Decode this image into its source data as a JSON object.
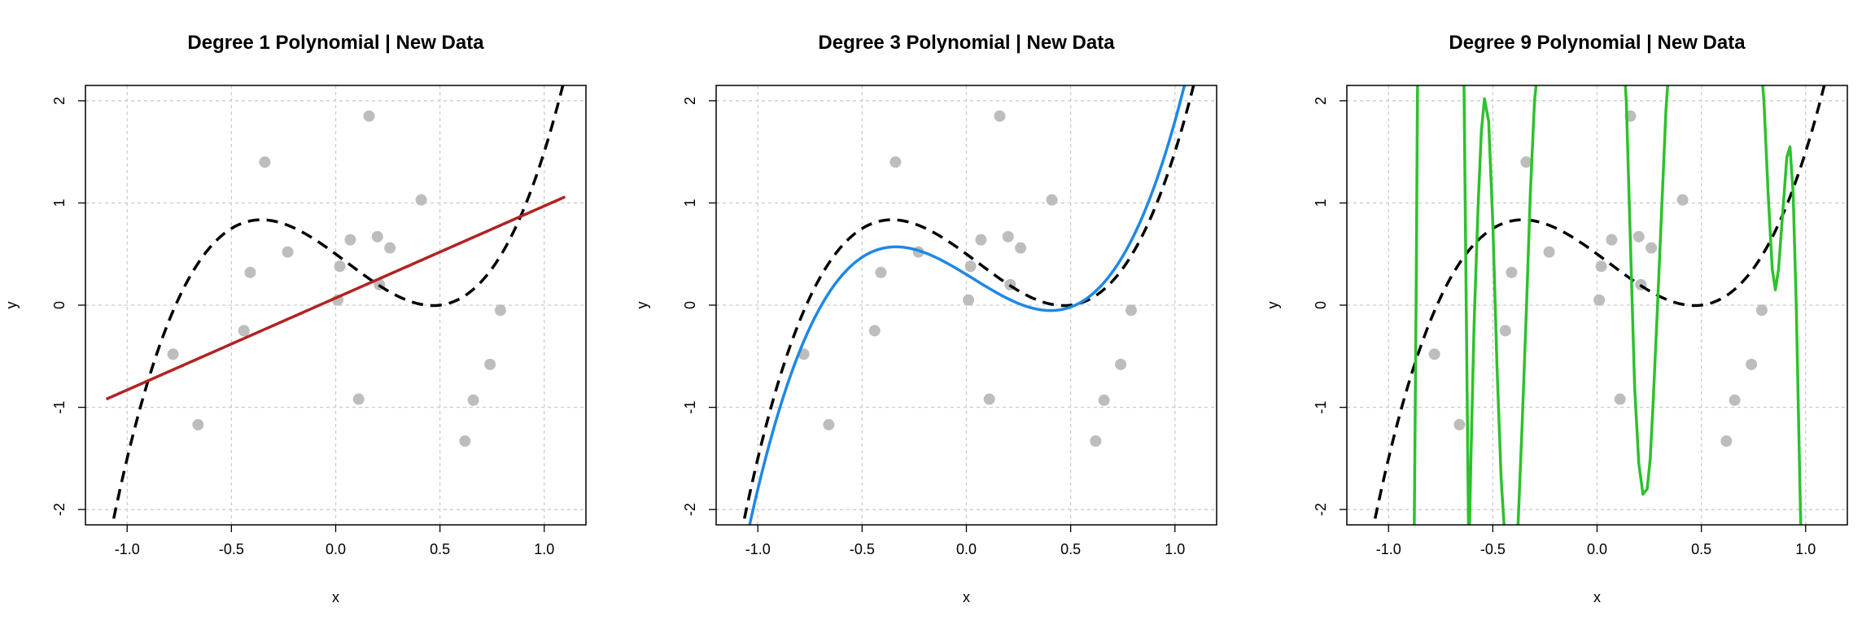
{
  "chart_data": [
    {
      "type": "line",
      "title": "Degree 1 Polynomial | New Data",
      "xlabel": "x",
      "ylabel": "y",
      "xlim": [
        -1.2,
        1.2
      ],
      "ylim": [
        -2.15,
        2.15
      ],
      "xticks": [
        -1.0,
        -0.5,
        0.0,
        0.5,
        1.0
      ],
      "xtick_labels": [
        "-1.0",
        "-0.5",
        "0.0",
        "0.5",
        "1.0"
      ],
      "yticks": [
        -2,
        -1,
        0,
        1,
        2
      ],
      "ytick_labels": [
        "-2",
        "-1",
        "0",
        "1",
        "2"
      ],
      "grid": true,
      "fit_color": "#B22222",
      "fit_coefficients": [
        0.07,
        0.9
      ],
      "fit_domain": [
        -1.1,
        1.1
      ],
      "truth_coefficients": [
        0.5,
        -1.5,
        -0.5,
        3.0
      ],
      "truth_domain": [
        -1.1,
        1.1
      ],
      "points": {
        "x": [
          -0.78,
          -0.66,
          -0.44,
          -0.41,
          -0.34,
          -0.23,
          0.01,
          0.02,
          0.07,
          0.11,
          0.16,
          0.2,
          0.21,
          0.26,
          0.41,
          0.62,
          0.66,
          0.74,
          0.79
        ],
        "y": [
          -0.48,
          -1.17,
          -0.25,
          0.32,
          1.4,
          0.52,
          0.05,
          0.38,
          0.64,
          -0.92,
          1.85,
          0.67,
          0.2,
          0.56,
          1.03,
          -1.33,
          -0.93,
          -0.58,
          -0.05
        ]
      }
    },
    {
      "type": "line",
      "title": "Degree 3 Polynomial | New Data",
      "xlabel": "x",
      "ylabel": "y",
      "xlim": [
        -1.2,
        1.2
      ],
      "ylim": [
        -2.15,
        2.15
      ],
      "xticks": [
        -1.0,
        -0.5,
        0.0,
        0.5,
        1.0
      ],
      "xtick_labels": [
        "-1.0",
        "-0.5",
        "0.0",
        "0.5",
        "1.0"
      ],
      "yticks": [
        -2,
        -1,
        0,
        1,
        2
      ],
      "ytick_labels": [
        "-2",
        "-1",
        "0",
        "1",
        "2"
      ],
      "grid": true,
      "fit_color": "#1E88E5",
      "fit_coefficients": [
        0.3,
        -1.25,
        -0.3,
        3.05
      ],
      "fit_domain": [
        -1.1,
        1.1
      ],
      "truth_coefficients": [
        0.5,
        -1.5,
        -0.5,
        3.0
      ],
      "truth_domain": [
        -1.1,
        1.1
      ],
      "points": {
        "x": [
          -0.78,
          -0.66,
          -0.44,
          -0.41,
          -0.34,
          -0.23,
          0.01,
          0.02,
          0.07,
          0.11,
          0.16,
          0.2,
          0.21,
          0.26,
          0.41,
          0.62,
          0.66,
          0.74,
          0.79
        ],
        "y": [
          -0.48,
          -1.17,
          -0.25,
          0.32,
          1.4,
          0.52,
          0.05,
          0.38,
          0.64,
          -0.92,
          1.85,
          0.67,
          0.2,
          0.56,
          1.03,
          -1.33,
          -0.93,
          -0.58,
          -0.05
        ]
      }
    },
    {
      "type": "line",
      "title": "Degree 9 Polynomial | New Data",
      "xlabel": "x",
      "ylabel": "y",
      "xlim": [
        -1.2,
        1.2
      ],
      "ylim": [
        -2.15,
        2.15
      ],
      "xticks": [
        -1.0,
        -0.5,
        0.0,
        0.5,
        1.0
      ],
      "xtick_labels": [
        "-1.0",
        "-0.5",
        "0.0",
        "0.5",
        "1.0"
      ],
      "yticks": [
        -2,
        -1,
        0,
        1,
        2
      ],
      "ytick_labels": [
        "-2",
        "-1",
        "0",
        "1",
        "2"
      ],
      "grid": true,
      "fit_color": "#2DC12D",
      "fit_points": {
        "x": [
          -0.878,
          -0.868,
          -0.86,
          -0.82,
          -0.75,
          -0.69,
          -0.64,
          -0.615,
          -0.605,
          -0.59,
          -0.57,
          -0.555,
          -0.54,
          -0.52,
          -0.5,
          -0.48,
          -0.46,
          -0.44,
          -0.42,
          -0.4,
          -0.38,
          -0.36,
          -0.34,
          -0.32,
          -0.3,
          -0.28,
          -0.265,
          -0.255,
          -0.24,
          -0.2,
          -0.15,
          -0.1,
          -0.05,
          0.0,
          0.05,
          0.1,
          0.125,
          0.14,
          0.16,
          0.18,
          0.2,
          0.22,
          0.24,
          0.255,
          0.27,
          0.29,
          0.31,
          0.33,
          0.35,
          0.365,
          0.375,
          0.4,
          0.5,
          0.6,
          0.7,
          0.78,
          0.8,
          0.82,
          0.84,
          0.855,
          0.87,
          0.89,
          0.91,
          0.925,
          0.94,
          0.955,
          0.97,
          0.98,
          0.99
        ],
        "y": [
          -2.5,
          0.0,
          2.5,
          2.5,
          2.5,
          2.5,
          2.5,
          -2.5,
          -1.5,
          -0.2,
          1.0,
          1.7,
          2.02,
          1.8,
          0.8,
          -0.6,
          -1.7,
          -2.35,
          -2.5,
          -2.5,
          -2.2,
          -1.2,
          -0.1,
          1.1,
          2.0,
          2.4,
          2.5,
          2.5,
          2.5,
          2.5,
          2.5,
          2.5,
          2.5,
          2.5,
          2.5,
          2.5,
          2.5,
          2.0,
          0.6,
          -0.8,
          -1.55,
          -1.85,
          -1.8,
          -1.5,
          -0.9,
          0.0,
          0.95,
          1.9,
          2.5,
          2.5,
          2.5,
          2.5,
          2.5,
          2.5,
          2.5,
          2.5,
          2.0,
          1.1,
          0.35,
          0.15,
          0.35,
          0.9,
          1.45,
          1.55,
          1.1,
          0.0,
          -1.5,
          -2.5,
          -2.5
        ]
      },
      "truth_coefficients": [
        0.5,
        -1.5,
        -0.5,
        3.0
      ],
      "truth_domain": [
        -1.1,
        1.1
      ],
      "points": {
        "x": [
          -0.78,
          -0.66,
          -0.44,
          -0.41,
          -0.34,
          -0.23,
          0.01,
          0.02,
          0.07,
          0.11,
          0.16,
          0.2,
          0.21,
          0.26,
          0.41,
          0.62,
          0.66,
          0.74,
          0.79
        ],
        "y": [
          -0.48,
          -1.17,
          -0.25,
          0.32,
          1.4,
          0.52,
          0.05,
          0.38,
          0.64,
          -0.92,
          1.85,
          0.67,
          0.2,
          0.56,
          1.03,
          -1.33,
          -0.93,
          -0.58,
          -0.05
        ]
      }
    }
  ]
}
